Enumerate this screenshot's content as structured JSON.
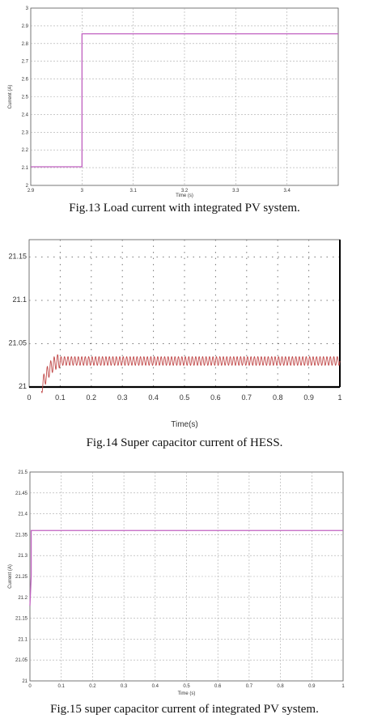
{
  "captions": {
    "fig13": "Fig.13 Load current with integrated PV system.",
    "fig14": "Fig.14 Super capacitor current of HESS.",
    "fig15": "Fig.15 super capacitor current of integrated PV system."
  },
  "chart_data": [
    {
      "id": "fig13",
      "type": "line",
      "xlabel": "Time (s)",
      "ylabel": "Current (A)",
      "xlim": [
        2.9,
        3.5
      ],
      "ylim": [
        2.0,
        3.0
      ],
      "xticks": [
        "2.9",
        "3",
        "3.1",
        "3.2",
        "3.3",
        "3.4"
      ],
      "yticks": [
        "2",
        "2.1",
        "2.2",
        "2.3",
        "2.4",
        "2.5",
        "2.6",
        "2.7",
        "2.8",
        "2.9",
        "3"
      ],
      "grid": true,
      "series": [
        {
          "color": "#c060c0",
          "x": [
            2.9,
            3.0,
            3.0,
            3.5
          ],
          "y": [
            2.105,
            2.105,
            2.855,
            2.855
          ]
        }
      ]
    },
    {
      "id": "fig14",
      "type": "line",
      "xlabel": "Time(s)",
      "ylabel": "",
      "xlim": [
        0,
        1
      ],
      "ylim": [
        21.0,
        21.17
      ],
      "xticks": [
        "0",
        "0.1",
        "0.2",
        "0.3",
        "0.4",
        "0.5",
        "0.6",
        "0.7",
        "0.8",
        "0.9",
        "1"
      ],
      "yticks": [
        "21",
        "21.05",
        "21.1",
        "21.15"
      ],
      "grid": true,
      "series": [
        {
          "color": "#c04848",
          "description_points": {
            "start": 0.04,
            "rise_end": 0.1,
            "mean": 21.03,
            "ripple": 0.005,
            "cycles_per_unit": 90
          }
        }
      ]
    },
    {
      "id": "fig15",
      "type": "line",
      "xlabel": "Time (s)",
      "ylabel": "Current (A)",
      "xlim": [
        0,
        1
      ],
      "ylim": [
        21.0,
        21.5
      ],
      "xticks": [
        "0",
        "0.1",
        "0.2",
        "0.3",
        "0.4",
        "0.5",
        "0.6",
        "0.7",
        "0.8",
        "0.9",
        "1"
      ],
      "yticks": [
        "21",
        "21.05",
        "21.1",
        "21.15",
        "21.2",
        "21.25",
        "21.3",
        "21.35",
        "21.4",
        "21.45",
        "21.5"
      ],
      "grid": true,
      "series": [
        {
          "color": "#c060c0",
          "x": [
            0,
            0.004,
            0.004,
            1
          ],
          "y": [
            21.18,
            21.25,
            21.36,
            21.36
          ]
        }
      ]
    }
  ]
}
